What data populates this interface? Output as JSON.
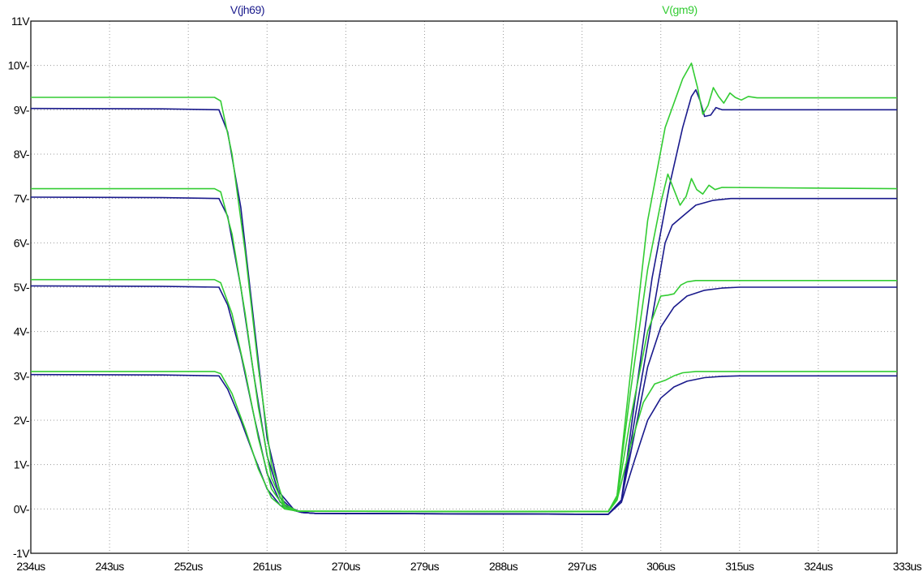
{
  "chart_data": {
    "type": "line",
    "title": "",
    "xlabel": "",
    "ylabel": "",
    "xlim": [
      234,
      333
    ],
    "ylim": [
      -1,
      11
    ],
    "grid": true,
    "x_ticks": [
      234,
      243,
      252,
      261,
      270,
      279,
      288,
      297,
      306,
      315,
      324,
      333
    ],
    "x_tick_labels": [
      "234us",
      "243us",
      "252us",
      "261us",
      "270us",
      "279us",
      "288us",
      "297us",
      "306us",
      "315us",
      "324us",
      "333us"
    ],
    "y_ticks": [
      -1,
      0,
      1,
      2,
      3,
      4,
      5,
      6,
      7,
      8,
      9,
      10,
      11
    ],
    "y_tick_labels": [
      "-1V",
      "0V-",
      "1V-",
      "2V-",
      "3V-",
      "4V-",
      "5V-",
      "6V-",
      "7V-",
      "8V-",
      "9V-",
      "10V-",
      "11V"
    ],
    "legend": [
      {
        "label": "V(jh69)",
        "color": "#1a1a8c"
      },
      {
        "label": "V(gm9)",
        "color": "#33cc33"
      }
    ],
    "series": [
      {
        "name": "V(jh69)",
        "color": "#1a1a8c",
        "points": [
          [
            234,
            9.03
          ],
          [
            249,
            9.02
          ],
          [
            255.5,
            9.0
          ],
          [
            256.5,
            8.5
          ],
          [
            258,
            6.8
          ],
          [
            259.5,
            4.2
          ],
          [
            261,
            1.6
          ],
          [
            262.5,
            0.35
          ],
          [
            264,
            0.0
          ],
          [
            265,
            -0.08
          ],
          [
            266.5,
            -0.1
          ],
          [
            300,
            -0.12
          ],
          [
            301.5,
            0.2
          ],
          [
            303,
            2.4
          ],
          [
            305,
            5.2
          ],
          [
            307,
            7.3
          ],
          [
            308.5,
            8.6
          ],
          [
            309.5,
            9.3
          ],
          [
            310,
            9.45
          ],
          [
            310.5,
            9.2
          ],
          [
            311,
            8.85
          ],
          [
            311.7,
            8.88
          ],
          [
            312.3,
            9.05
          ],
          [
            313,
            9.0
          ],
          [
            333,
            9.0
          ]
        ]
      },
      {
        "name": "V(jh69)",
        "color": "#1a1a8c",
        "points": [
          [
            234,
            7.03
          ],
          [
            249,
            7.02
          ],
          [
            255.5,
            7.0
          ],
          [
            256.5,
            6.6
          ],
          [
            258,
            5.0
          ],
          [
            259.5,
            3.0
          ],
          [
            261,
            1.2
          ],
          [
            262.5,
            0.25
          ],
          [
            264,
            -0.03
          ],
          [
            265,
            -0.08
          ],
          [
            266.5,
            -0.1
          ],
          [
            300,
            -0.12
          ],
          [
            301.5,
            0.2
          ],
          [
            303,
            2.0
          ],
          [
            305,
            4.3
          ],
          [
            306.5,
            6.0
          ],
          [
            307.3,
            6.4
          ],
          [
            308.5,
            6.6
          ],
          [
            310,
            6.85
          ],
          [
            312,
            6.96
          ],
          [
            314,
            7.0
          ],
          [
            333,
            7.0
          ]
        ]
      },
      {
        "name": "V(jh69)",
        "color": "#1a1a8c",
        "points": [
          [
            234,
            5.03
          ],
          [
            249,
            5.02
          ],
          [
            255.5,
            5.0
          ],
          [
            256.5,
            4.6
          ],
          [
            258,
            3.5
          ],
          [
            259.5,
            2.1
          ],
          [
            261,
            0.8
          ],
          [
            262.5,
            0.15
          ],
          [
            264,
            -0.03
          ],
          [
            265,
            -0.08
          ],
          [
            266.5,
            -0.1
          ],
          [
            300,
            -0.12
          ],
          [
            301.5,
            0.2
          ],
          [
            303,
            1.7
          ],
          [
            304.5,
            3.2
          ],
          [
            306,
            4.1
          ],
          [
            307.5,
            4.55
          ],
          [
            309,
            4.8
          ],
          [
            311,
            4.93
          ],
          [
            313,
            4.98
          ],
          [
            315,
            5.0
          ],
          [
            333,
            5.0
          ]
        ]
      },
      {
        "name": "V(jh69)",
        "color": "#1a1a8c",
        "points": [
          [
            234,
            3.03
          ],
          [
            249,
            3.02
          ],
          [
            255.5,
            3.0
          ],
          [
            256.5,
            2.7
          ],
          [
            258,
            2.0
          ],
          [
            259.5,
            1.2
          ],
          [
            261,
            0.45
          ],
          [
            262.5,
            0.08
          ],
          [
            264,
            -0.03
          ],
          [
            265,
            -0.08
          ],
          [
            266.5,
            -0.1
          ],
          [
            300,
            -0.12
          ],
          [
            301.5,
            0.15
          ],
          [
            303,
            1.1
          ],
          [
            304.5,
            2.0
          ],
          [
            306,
            2.5
          ],
          [
            307.5,
            2.75
          ],
          [
            309,
            2.88
          ],
          [
            311,
            2.96
          ],
          [
            313,
            2.99
          ],
          [
            315,
            3.0
          ],
          [
            333,
            3.0
          ]
        ]
      },
      {
        "name": "V(gm9)",
        "color": "#33cc33",
        "points": [
          [
            234,
            9.28
          ],
          [
            255,
            9.28
          ],
          [
            255.7,
            9.2
          ],
          [
            257,
            8.0
          ],
          [
            258.5,
            5.8
          ],
          [
            260,
            3.2
          ],
          [
            261.5,
            1.0
          ],
          [
            263,
            0.1
          ],
          [
            264.5,
            -0.05
          ],
          [
            300,
            -0.06
          ],
          [
            301,
            0.3
          ],
          [
            302.5,
            3.0
          ],
          [
            304.5,
            6.5
          ],
          [
            306.5,
            8.6
          ],
          [
            308.5,
            9.7
          ],
          [
            309.5,
            10.05
          ],
          [
            310.2,
            9.5
          ],
          [
            310.8,
            8.9
          ],
          [
            311.4,
            9.1
          ],
          [
            312,
            9.5
          ],
          [
            312.6,
            9.3
          ],
          [
            313.2,
            9.15
          ],
          [
            313.9,
            9.38
          ],
          [
            314.5,
            9.28
          ],
          [
            315.2,
            9.22
          ],
          [
            316,
            9.3
          ],
          [
            317,
            9.27
          ],
          [
            333,
            9.27
          ]
        ]
      },
      {
        "name": "V(gm9)",
        "color": "#33cc33",
        "points": [
          [
            234,
            7.22
          ],
          [
            255,
            7.22
          ],
          [
            255.7,
            7.15
          ],
          [
            257,
            6.2
          ],
          [
            258.5,
            4.4
          ],
          [
            260,
            2.3
          ],
          [
            261.5,
            0.7
          ],
          [
            263,
            0.05
          ],
          [
            264.5,
            -0.05
          ],
          [
            300,
            -0.06
          ],
          [
            301,
            0.3
          ],
          [
            302.5,
            2.6
          ],
          [
            304.5,
            5.4
          ],
          [
            306,
            6.9
          ],
          [
            306.8,
            7.55
          ],
          [
            307.5,
            7.2
          ],
          [
            308.2,
            6.85
          ],
          [
            308.9,
            7.05
          ],
          [
            309.5,
            7.45
          ],
          [
            310.1,
            7.2
          ],
          [
            310.8,
            7.1
          ],
          [
            311.5,
            7.3
          ],
          [
            312.2,
            7.2
          ],
          [
            313,
            7.25
          ],
          [
            333,
            7.22
          ]
        ]
      },
      {
        "name": "V(gm9)",
        "color": "#33cc33",
        "points": [
          [
            234,
            5.17
          ],
          [
            255,
            5.17
          ],
          [
            255.7,
            5.1
          ],
          [
            257,
            4.4
          ],
          [
            258.5,
            3.1
          ],
          [
            260,
            1.6
          ],
          [
            261.5,
            0.45
          ],
          [
            263,
            0.03
          ],
          [
            264.5,
            -0.05
          ],
          [
            300,
            -0.06
          ],
          [
            301,
            0.25
          ],
          [
            302.5,
            2.0
          ],
          [
            304.5,
            4.0
          ],
          [
            306,
            4.8
          ],
          [
            306.8,
            4.82
          ],
          [
            307.5,
            4.85
          ],
          [
            308.3,
            5.05
          ],
          [
            309,
            5.12
          ],
          [
            310,
            5.15
          ],
          [
            333,
            5.15
          ]
        ]
      },
      {
        "name": "V(gm9)",
        "color": "#33cc33",
        "points": [
          [
            234,
            3.1
          ],
          [
            255,
            3.1
          ],
          [
            255.7,
            3.05
          ],
          [
            257,
            2.6
          ],
          [
            258.5,
            1.8
          ],
          [
            260,
            0.9
          ],
          [
            261.5,
            0.25
          ],
          [
            263,
            0.0
          ],
          [
            264.5,
            -0.05
          ],
          [
            300,
            -0.06
          ],
          [
            301,
            0.2
          ],
          [
            302.5,
            1.4
          ],
          [
            304,
            2.4
          ],
          [
            305.3,
            2.82
          ],
          [
            306.5,
            2.9
          ],
          [
            307.5,
            3.0
          ],
          [
            308.5,
            3.07
          ],
          [
            310,
            3.1
          ],
          [
            333,
            3.1
          ]
        ]
      }
    ]
  }
}
